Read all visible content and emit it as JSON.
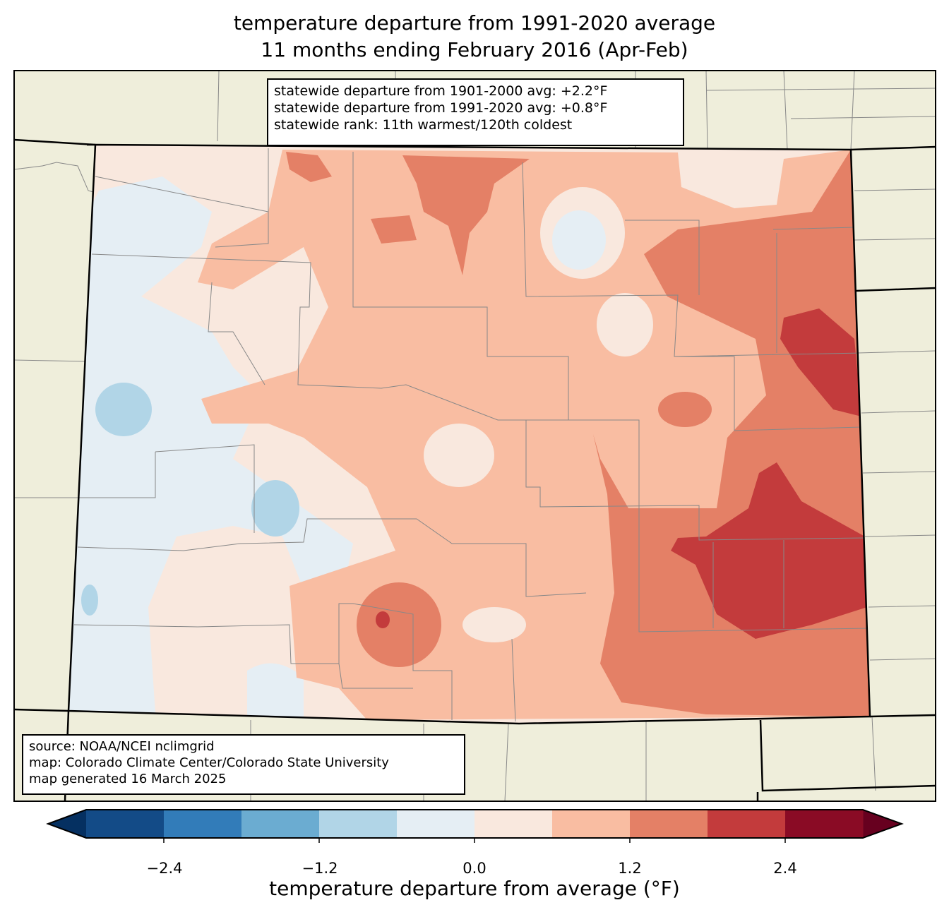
{
  "title": {
    "line1": "temperature departure from 1991-2020 average",
    "line2": "11 months ending February 2016 (Apr-Feb)"
  },
  "stats": {
    "line1": "statewide departure from 1901-2000 avg: +2.2°F",
    "line2": "statewide departure from 1991-2020 avg: +0.8°F",
    "line3": "statewide rank: 11th warmest/120th coldest"
  },
  "credits": {
    "line1": "source: NOAA/NCEI nclimgrid",
    "line2": "map: Colorado Climate Center/Colorado State University",
    "line3": "map generated 16 March 2025"
  },
  "colorbar": {
    "label": "temperature departure from average (°F)",
    "ticks": [
      "−2.4",
      "−1.2",
      "0.0",
      "1.2",
      "2.4"
    ],
    "levels": [
      -3.0,
      -2.4,
      -1.8,
      -1.2,
      -0.6,
      0.0,
      0.6,
      1.2,
      1.8,
      2.4,
      3.0
    ],
    "colors": [
      "#134b87",
      "#327cb9",
      "#6bacd1",
      "#b1d5e7",
      "#e5eef4",
      "#f9e8de",
      "#f9bda2",
      "#e48066",
      "#c33b3c",
      "#8a0b25"
    ],
    "extend_low_color": "#053061",
    "extend_high_color": "#67001f"
  },
  "land_color": "#efeedb"
}
